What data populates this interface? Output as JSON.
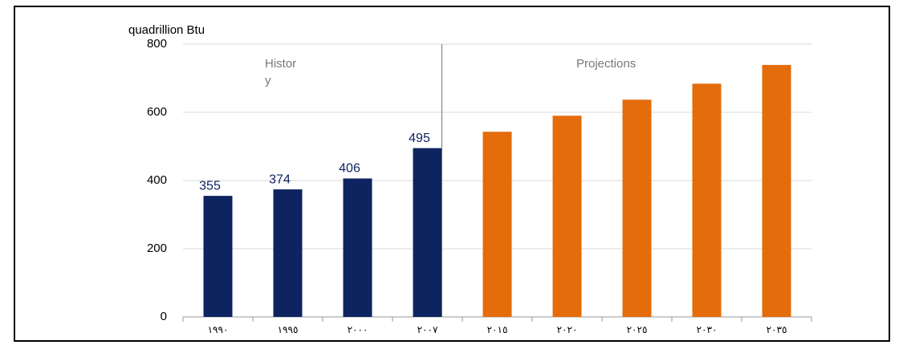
{
  "chart_data": {
    "type": "bar",
    "y_axis_label": "quadrillion Btu",
    "annotations": {
      "history": [
        "Histor",
        "y"
      ],
      "projections": "Projections"
    },
    "categories": [
      "١٩٩٠",
      "١٩٩٥",
      "٢٠٠٠",
      "٢٠٠٧",
      "٢٠١٥",
      "٢٠٢٠",
      "٢٠٢٥",
      "٢٠٣٠",
      "٢٠٣٥"
    ],
    "values": [
      355,
      374,
      406,
      495,
      543,
      590,
      637,
      684,
      739
    ],
    "value_labels": [
      "355",
      "374",
      "406",
      "495",
      null,
      null,
      null,
      null,
      null
    ],
    "colors": [
      "#0d2460",
      "#0d2460",
      "#0d2460",
      "#0d2460",
      "#e46c0a",
      "#e46c0a",
      "#e46c0a",
      "#e46c0a",
      "#e46c0a"
    ],
    "ylim": [
      0,
      800
    ],
    "yticks": [
      0,
      200,
      400,
      600,
      800
    ],
    "grid": true
  }
}
